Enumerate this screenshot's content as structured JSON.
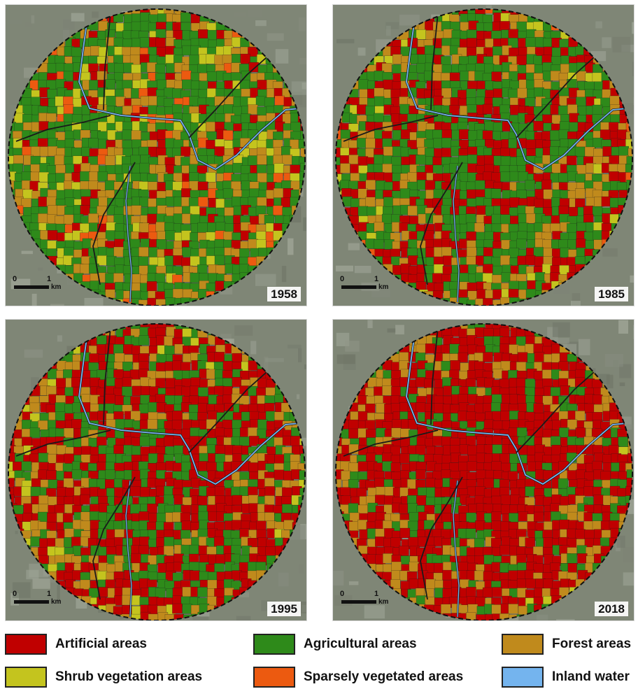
{
  "colors": {
    "artificial": "#c00000",
    "agricultural": "#2e8a1a",
    "forest": "#c08a1c",
    "shrub": "#c4c41e",
    "sparse": "#ec5a10",
    "water": "#74b4ee",
    "road": "#1a1a1a",
    "satellite": "#7f8676"
  },
  "scalebar": {
    "zero": "0",
    "one": "1",
    "unit": "km"
  },
  "panels": [
    {
      "year": "1958",
      "mix": {
        "artificial": 0.12,
        "agricultural": 0.5,
        "forest": 0.25,
        "shrub": 0.09,
        "sparse": 0.04
      }
    },
    {
      "year": "1985",
      "mix": {
        "artificial": 0.28,
        "agricultural": 0.36,
        "forest": 0.24,
        "shrub": 0.09,
        "sparse": 0.03
      }
    },
    {
      "year": "1995",
      "mix": {
        "artificial": 0.42,
        "agricultural": 0.24,
        "forest": 0.24,
        "shrub": 0.08,
        "sparse": 0.02
      }
    },
    {
      "year": "2018",
      "mix": {
        "artificial": 0.55,
        "agricultural": 0.16,
        "forest": 0.25,
        "shrub": 0.03,
        "sparse": 0.01
      }
    }
  ],
  "legend": [
    {
      "key": "artificial",
      "label": "Artificial areas"
    },
    {
      "key": "agricultural",
      "label": "Agricultural areas"
    },
    {
      "key": "forest",
      "label": "Forest areas"
    },
    {
      "key": "shrub",
      "label": "Shrub vegetation areas"
    },
    {
      "key": "sparse",
      "label": "Sparsely vegetated areas"
    },
    {
      "key": "water",
      "label": "Inland water"
    }
  ]
}
